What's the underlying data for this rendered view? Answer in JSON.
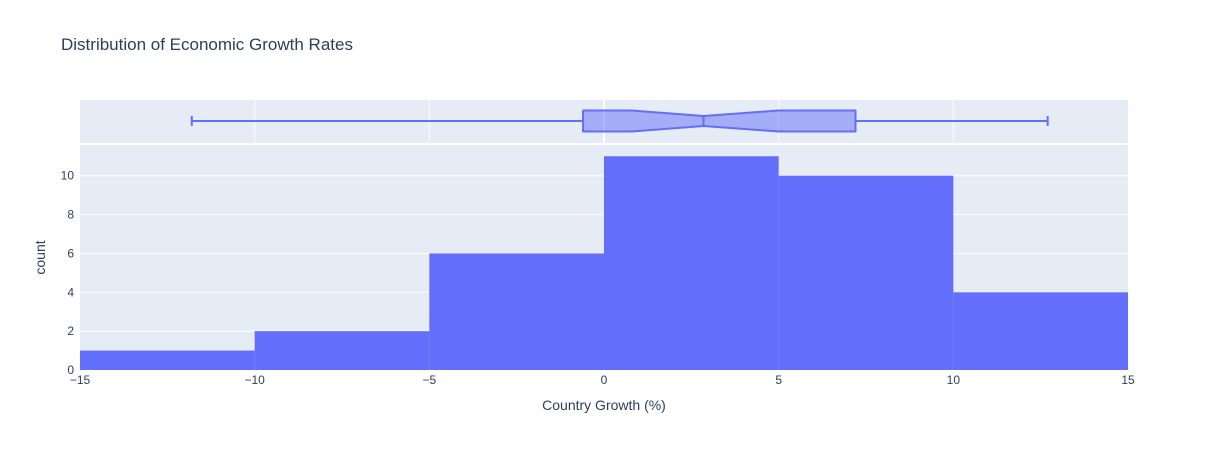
{
  "chart_data": {
    "type": "histogram",
    "title": "Distribution of Economic Growth Rates",
    "xlabel": "Country Growth (%)",
    "ylabel": "count",
    "xlim": [
      -15,
      15
    ],
    "ylim": [
      0,
      11.58
    ],
    "x_ticks": [
      -15,
      -10,
      -5,
      0,
      5,
      10,
      15
    ],
    "x_tick_labels": [
      "−15",
      "−10",
      "−5",
      "0",
      "5",
      "10",
      "15"
    ],
    "y_ticks": [
      0,
      2,
      4,
      6,
      8,
      10
    ],
    "y_tick_labels": [
      "0",
      "2",
      "4",
      "6",
      "8",
      "10"
    ],
    "grid": true,
    "bins": [
      {
        "start": -15,
        "end": -10,
        "count": 1
      },
      {
        "start": -10,
        "end": -5,
        "count": 2
      },
      {
        "start": -5,
        "end": 0,
        "count": 6
      },
      {
        "start": 0,
        "end": 5,
        "count": 11
      },
      {
        "start": 5,
        "end": 10,
        "count": 10
      },
      {
        "start": 10,
        "end": 15,
        "count": 4
      }
    ],
    "marginal_box": {
      "type": "box",
      "notched": true,
      "min": -11.8,
      "q1": -0.6,
      "median": 2.85,
      "q3": 7.2,
      "max": 12.7,
      "notch_low": 0.8,
      "notch_high": 5.0
    },
    "colors": {
      "bar": "#636efa",
      "box_fill": "rgba(99,110,250,0.5)",
      "box_line": "#636efa",
      "panel_bg": "#e5ecf6",
      "text": "#2a3f5f"
    }
  }
}
